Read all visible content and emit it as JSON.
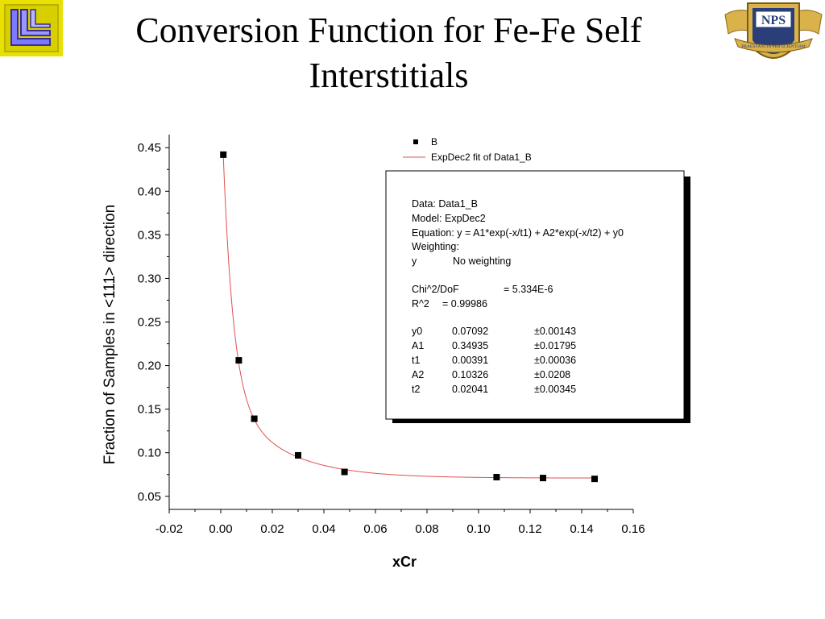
{
  "slide": {
    "title_line1": "Conversion Function for  Fe-Fe Self",
    "title_line2": "Interstitials"
  },
  "logos": {
    "left": {
      "icon": "ll-logo-icon",
      "colors": [
        "#e8e000",
        "#7d79ff",
        "#3a2f8e"
      ]
    },
    "right": {
      "icon": "nps-crest-icon",
      "text": "NPS",
      "motto": "PRAESTANTIA PER SCIENTIAM",
      "colors": [
        "#d9b24a",
        "#2a3f7a"
      ]
    }
  },
  "chart_data": {
    "type": "scatter",
    "xlabel": "xCr",
    "ylabel": "Fraction of Samples in <111> direction",
    "xlim": [
      -0.02,
      0.16
    ],
    "ylim": [
      0.035,
      0.465
    ],
    "x_ticks": [
      "-0.02",
      "0.00",
      "0.02",
      "0.04",
      "0.06",
      "0.08",
      "0.10",
      "0.12",
      "0.14",
      "0.16"
    ],
    "y_ticks": [
      "0.05",
      "0.10",
      "0.15",
      "0.20",
      "0.25",
      "0.30",
      "0.35",
      "0.40",
      "0.45"
    ],
    "series": [
      {
        "name": "B",
        "marker": "square",
        "color": "#000000",
        "x": [
          0.001,
          0.007,
          0.013,
          0.03,
          0.048,
          0.107,
          0.125,
          0.145
        ],
        "y": [
          0.442,
          0.206,
          0.139,
          0.097,
          0.078,
          0.072,
          0.071,
          0.07
        ]
      },
      {
        "name": "ExpDec2 fit of Data1_B",
        "kind": "fit_line",
        "color": "#e05050",
        "params": {
          "y0": 0.07092,
          "A1": 0.34935,
          "t1": 0.00391,
          "A2": 0.10326,
          "t2": 0.02041
        }
      }
    ],
    "legend": {
      "placement": "top-right",
      "entries": [
        "B",
        "ExpDec2 fit of Data1_B"
      ]
    },
    "fit_box": {
      "placement": "upper-right",
      "lines": [
        "Data: Data1_B",
        "Model: ExpDec2",
        "Equation: y = A1*exp(-x/t1) + A2*exp(-x/t2) + y0",
        "Weighting:"
      ],
      "weighting_row": [
        "y",
        "No weighting"
      ],
      "stats": [
        [
          "Chi^2/DoF",
          "= 5.334E-6"
        ],
        [
          "R^2",
          "=  0.99986"
        ]
      ],
      "params": [
        [
          "y0",
          "0.07092",
          "±0.00143"
        ],
        [
          "A1",
          "0.34935",
          "±0.01795"
        ],
        [
          "t1",
          "0.00391",
          "±0.00036"
        ],
        [
          "A2",
          "0.10326",
          "±0.0208"
        ],
        [
          "t2",
          "0.02041",
          "±0.00345"
        ]
      ]
    },
    "grid": false
  }
}
